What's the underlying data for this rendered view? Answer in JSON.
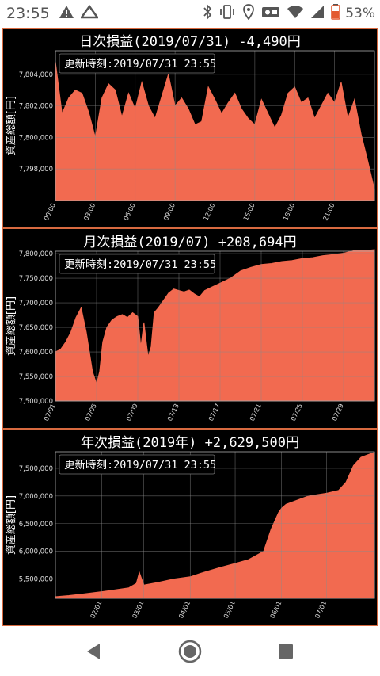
{
  "status_bar": {
    "time": "23:55",
    "battery_percent": "53%",
    "left_icons": [
      "warning-icon",
      "mountain-icon"
    ],
    "right_icons": [
      "bluetooth-icon",
      "vibrate-icon",
      "location-icon",
      "vpn-icon",
      "wifi-icon",
      "signal-icon",
      "battery-icon"
    ]
  },
  "charts": [
    {
      "title": "日次損益(2019/07/31) -4,490円",
      "updated": "更新時刻:2019/07/31 23:55",
      "ylabel": "資産総額[円]"
    },
    {
      "title": "月次損益(2019/07) +208,694円",
      "updated": "更新時刻:2019/07/31 23:55",
      "ylabel": "資産総額[円]"
    },
    {
      "title": "年次損益(2019年) +2,629,500円",
      "updated": "更新時刻:2019/07/31 23:55",
      "ylabel": "資産総額[円]"
    }
  ],
  "chart_data": [
    {
      "type": "area",
      "title": "日次損益(2019/07/31) -4,490円",
      "ylabel": "資産総額[円]",
      "xlabel": "",
      "x_ticks": [
        "00:00",
        "03:00",
        "06:00",
        "09:00",
        "12:00",
        "15:00",
        "18:00",
        "21:00"
      ],
      "y_ticks": [
        "7,798,000",
        "7,800,000",
        "7,802,000",
        "7,804,000"
      ],
      "y_tick_values": [
        7798000,
        7800000,
        7802000,
        7804000
      ],
      "ylim": [
        7796000,
        7805500
      ],
      "xlim": [
        0,
        24
      ],
      "fill_color": "#f26a50",
      "grid": true,
      "x": [
        0,
        0.5,
        1,
        1.5,
        2,
        2.5,
        3,
        3.5,
        4,
        4.5,
        5,
        5.5,
        6,
        6.5,
        7,
        7.5,
        8,
        8.5,
        9,
        9.5,
        10,
        10.5,
        11,
        11.5,
        12,
        12.5,
        13,
        13.5,
        14,
        14.5,
        15,
        15.5,
        16,
        16.5,
        17,
        17.5,
        18,
        18.5,
        19,
        19.5,
        20,
        20.5,
        21,
        21.5,
        22,
        22.5,
        23,
        23.5,
        24
      ],
      "values": [
        7804800,
        7801500,
        7802500,
        7803000,
        7802800,
        7801600,
        7800000,
        7802500,
        7803400,
        7803000,
        7801300,
        7802800,
        7801800,
        7803500,
        7802000,
        7801200,
        7802600,
        7804000,
        7802000,
        7802500,
        7801800,
        7800800,
        7801000,
        7803200,
        7802400,
        7801500,
        7802200,
        7802800,
        7801800,
        7801200,
        7800800,
        7802400,
        7801500,
        7800600,
        7801400,
        7802800,
        7803200,
        7802200,
        7802500,
        7801200,
        7802000,
        7802800,
        7802200,
        7803500,
        7801200,
        7802400,
        7800200,
        7798500,
        7796700
      ]
    },
    {
      "type": "area",
      "title": "月次損益(2019/07) +208,694円",
      "ylabel": "資産総額[円]",
      "xlabel": "",
      "x_ticks": [
        "07/01",
        "07/05",
        "07/09",
        "07/13",
        "07/17",
        "07/21",
        "07/25",
        "07/29"
      ],
      "y_ticks": [
        "7,500,000",
        "7,550,000",
        "7,600,000",
        "7,650,000",
        "7,700,000",
        "7,750,000",
        "7,800,000"
      ],
      "y_tick_values": [
        7500000,
        7550000,
        7600000,
        7650000,
        7700000,
        7750000,
        7800000
      ],
      "ylim": [
        7500000,
        7805000
      ],
      "xlim": [
        1,
        32
      ],
      "fill_color": "#f26a50",
      "grid": true,
      "x": [
        1,
        1.5,
        2,
        2.5,
        3,
        3.5,
        4,
        4.3,
        4.6,
        5,
        5.3,
        5.6,
        6,
        6.5,
        7,
        7.5,
        8,
        8.5,
        9,
        9.3,
        9.6,
        10,
        10.3,
        10.6,
        11,
        11.5,
        12,
        12.5,
        13,
        13.5,
        14,
        14.5,
        15,
        15.5,
        16,
        17,
        18,
        19,
        20,
        21,
        22,
        23,
        24,
        25,
        26,
        27,
        28,
        29,
        30,
        31,
        32
      ],
      "values": [
        7600000,
        7605000,
        7620000,
        7640000,
        7670000,
        7690000,
        7640000,
        7600000,
        7560000,
        7535000,
        7560000,
        7620000,
        7650000,
        7665000,
        7672000,
        7676000,
        7670000,
        7680000,
        7672000,
        7610000,
        7660000,
        7590000,
        7610000,
        7680000,
        7690000,
        7705000,
        7720000,
        7728000,
        7725000,
        7722000,
        7726000,
        7718000,
        7712000,
        7725000,
        7730000,
        7740000,
        7750000,
        7765000,
        7772000,
        7778000,
        7780000,
        7784000,
        7786000,
        7790000,
        7792000,
        7796000,
        7798000,
        7801000,
        7806000,
        7806000,
        7808000
      ]
    },
    {
      "type": "area",
      "title": "年次損益(2019年) +2,629,500円",
      "ylabel": "資産総額[円]",
      "xlabel": "",
      "x_ticks": [
        "02/01",
        "03/01",
        "04/01",
        "05/01",
        "06/01",
        "07/01"
      ],
      "y_ticks": [
        "5,500,000",
        "6,000,000",
        "6,500,000",
        "7,000,000",
        "7,500,000"
      ],
      "y_tick_values": [
        5500000,
        6000000,
        6500000,
        7000000,
        7500000
      ],
      "ylim": [
        5150000,
        7800000
      ],
      "xlim": [
        1,
        214
      ],
      "fill_color": "#f26a50",
      "grid": true,
      "x": [
        1,
        10,
        20,
        32,
        40,
        50,
        55,
        57,
        60,
        70,
        80,
        91,
        100,
        110,
        121,
        130,
        140,
        145,
        150,
        152,
        155,
        160,
        170,
        182,
        190,
        195,
        200,
        205,
        212,
        214
      ],
      "values": [
        5180000,
        5200000,
        5230000,
        5270000,
        5300000,
        5340000,
        5420000,
        5620000,
        5390000,
        5440000,
        5500000,
        5540000,
        5620000,
        5700000,
        5780000,
        5850000,
        6000000,
        6400000,
        6700000,
        6780000,
        6850000,
        6900000,
        7000000,
        7050000,
        7100000,
        7250000,
        7550000,
        7700000,
        7770000,
        7790000
      ]
    }
  ]
}
